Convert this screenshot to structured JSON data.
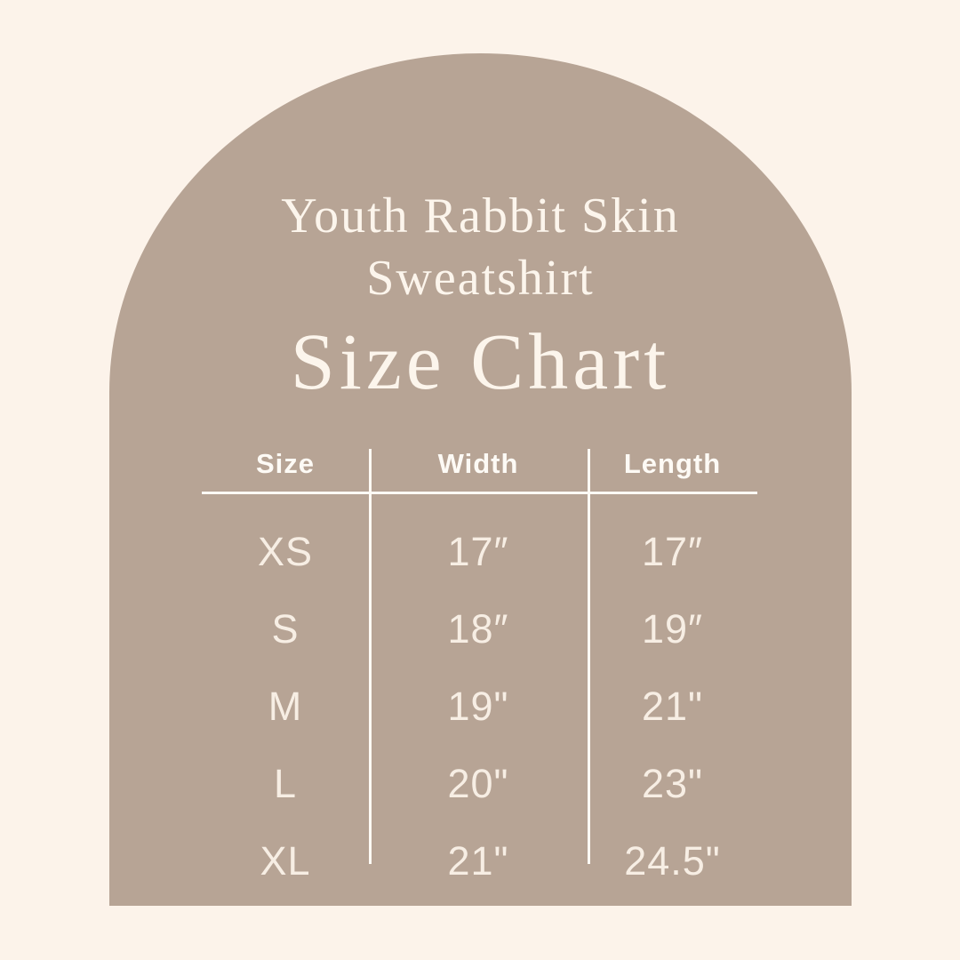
{
  "theme": {
    "bg": "#FCF3EA",
    "arch": "#B7A495",
    "title": "#FCF5EC",
    "rowtext": "#F7EEE4",
    "linecol": "#FDFAF5"
  },
  "header": {
    "title_line1": "Youth Rabbit Skin",
    "title_line2": "Sweatshirt",
    "subtitle": "Size Chart"
  },
  "chart_data": {
    "type": "table",
    "title": "Youth Rabbit Skin Sweatshirt Size Chart",
    "columns": [
      "Size",
      "Width",
      "Length"
    ],
    "rows": [
      {
        "size": "XS",
        "width": "17″",
        "length": "17″"
      },
      {
        "size": "S",
        "width": "18″",
        "length": "19″"
      },
      {
        "size": "M",
        "width": "19\"",
        "length": "21\""
      },
      {
        "size": "L",
        "width": "20\"",
        "length": "23\""
      },
      {
        "size": "XL",
        "width": "21\"",
        "length": "24.5\""
      }
    ]
  }
}
